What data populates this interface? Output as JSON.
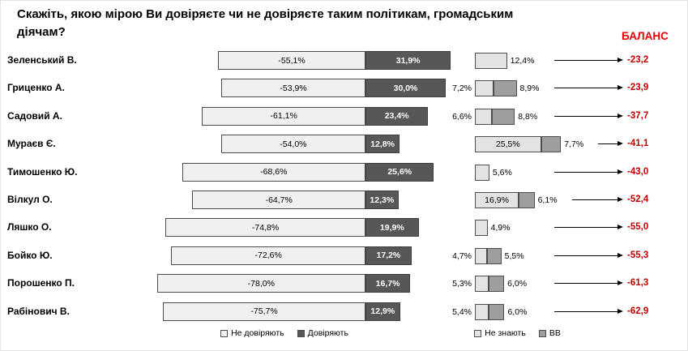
{
  "title": "Скажіть,  якою мірою Ви довіряєте чи не довіряєте таким політикам, громадським діячам?",
  "balance_header": "БАЛАНС",
  "legend": {
    "left_items": [
      "Не довіряють",
      "Довіряють"
    ],
    "right_items": [
      "Не знають",
      "ВВ"
    ]
  },
  "colors": {
    "distrust_fill": "#f0f0f0",
    "trust_fill": "#575757",
    "dont_know_fill": "#e3e3e3",
    "vv_fill": "#9e9e9e",
    "balance_header_red": "#e60000",
    "balance_value_red": "#c00000",
    "border": "#4d4d4d"
  },
  "rows": [
    {
      "name": "Зеленський В.",
      "distrust": 55.1,
      "distrust_label": "-55,1%",
      "trust": 31.9,
      "trust_label": "31,9%",
      "dk": 12.4,
      "dk_label": "12,4%",
      "dk_pos": "right",
      "vv": null,
      "vv_label": "",
      "balance_label": "-23,2"
    },
    {
      "name": "Гриценко А.",
      "distrust": 53.9,
      "distrust_label": "-53,9%",
      "trust": 30.0,
      "trust_label": "30,0%",
      "dk": 7.2,
      "dk_label": "7,2%",
      "dk_pos": "left",
      "vv": 8.9,
      "vv_label": "8,9%",
      "balance_label": "-23,9"
    },
    {
      "name": "Садовий А.",
      "distrust": 61.1,
      "distrust_label": "-61,1%",
      "trust": 23.4,
      "trust_label": "23,4%",
      "dk": 6.6,
      "dk_label": "6,6%",
      "dk_pos": "left",
      "vv": 8.8,
      "vv_label": "8,8%",
      "balance_label": "-37,7"
    },
    {
      "name": "Мураєв Є.",
      "distrust": 54.0,
      "distrust_label": "-54,0%",
      "trust": 12.8,
      "trust_label": "12,8%",
      "dk": 25.5,
      "dk_label": "25,5%",
      "dk_pos": "inside",
      "vv": 7.7,
      "vv_label": "7,7%",
      "balance_label": "-41,1"
    },
    {
      "name": "Тимошенко Ю.",
      "distrust": 68.6,
      "distrust_label": "-68,6%",
      "trust": 25.6,
      "trust_label": "25,6%",
      "dk": 5.6,
      "dk_label": "5,6%",
      "dk_pos": "right",
      "vv": null,
      "vv_label": "",
      "balance_label": "-43,0"
    },
    {
      "name": "Вілкул О.",
      "distrust": 64.7,
      "distrust_label": "-64,7%",
      "trust": 12.3,
      "trust_label": "12,3%",
      "dk": 16.9,
      "dk_label": "16,9%",
      "dk_pos": "inside",
      "vv": 6.1,
      "vv_label": "6,1%",
      "balance_label": "-52,4"
    },
    {
      "name": "Ляшко О.",
      "distrust": 74.8,
      "distrust_label": "-74,8%",
      "trust": 19.9,
      "trust_label": "19,9%",
      "dk": 4.9,
      "dk_label": "4,9%",
      "dk_pos": "right",
      "vv": null,
      "vv_label": "",
      "balance_label": "-55,0"
    },
    {
      "name": "Бойко Ю.",
      "distrust": 72.6,
      "distrust_label": "-72,6%",
      "trust": 17.2,
      "trust_label": "17,2%",
      "dk": 4.7,
      "dk_label": "4,7%",
      "dk_pos": "left",
      "vv": 5.5,
      "vv_label": "5,5%",
      "balance_label": "-55,3"
    },
    {
      "name": "Порошенко П.",
      "distrust": 78.0,
      "distrust_label": "-78,0%",
      "trust": 16.7,
      "trust_label": "16,7%",
      "dk": 5.3,
      "dk_label": "5,3%",
      "dk_pos": "left",
      "vv": 6.0,
      "vv_label": "6,0%",
      "balance_label": "-61,3"
    },
    {
      "name": "Рабінович В.",
      "distrust": 75.7,
      "distrust_label": "-75,7%",
      "trust": 12.9,
      "trust_label": "12,9%",
      "dk": 5.4,
      "dk_label": "5,4%",
      "dk_pos": "left",
      "vv": 6.0,
      "vv_label": "6,0%",
      "balance_label": "-62,9"
    }
  ],
  "chart_data": {
    "type": "bar",
    "variant": "horizontal-diverging-stacked",
    "title": "Скажіть, якою мірою Ви довіряєте чи не довіряєте таким політикам, громадським діячам?",
    "units": "%",
    "legend_position": "bottom",
    "categories": [
      "Зеленський В.",
      "Гриценко А.",
      "Садовий А.",
      "Мураєв Є.",
      "Тимошенко Ю.",
      "Вілкул О.",
      "Ляшко О.",
      "Бойко Ю.",
      "Порошенко П.",
      "Рабінович В."
    ],
    "series": [
      {
        "name": "Не довіряють",
        "values": [
          -55.1,
          -53.9,
          -61.1,
          -54.0,
          -68.6,
          -64.7,
          -74.8,
          -72.6,
          -78.0,
          -75.7
        ]
      },
      {
        "name": "Довіряють",
        "values": [
          31.9,
          30.0,
          23.4,
          12.8,
          25.6,
          12.3,
          19.9,
          17.2,
          16.7,
          12.9
        ]
      },
      {
        "name": "Не знають",
        "values": [
          12.4,
          7.2,
          6.6,
          25.5,
          5.6,
          16.9,
          4.9,
          4.7,
          5.3,
          5.4
        ]
      },
      {
        "name": "ВВ",
        "values": [
          null,
          8.9,
          8.8,
          7.7,
          null,
          6.1,
          null,
          5.5,
          6.0,
          6.0
        ]
      }
    ],
    "balance": {
      "label": "БАЛАНС",
      "values": [
        -23.2,
        -23.9,
        -37.7,
        -41.1,
        -43.0,
        -52.4,
        -55.0,
        -55.3,
        -61.3,
        -62.9
      ]
    }
  }
}
